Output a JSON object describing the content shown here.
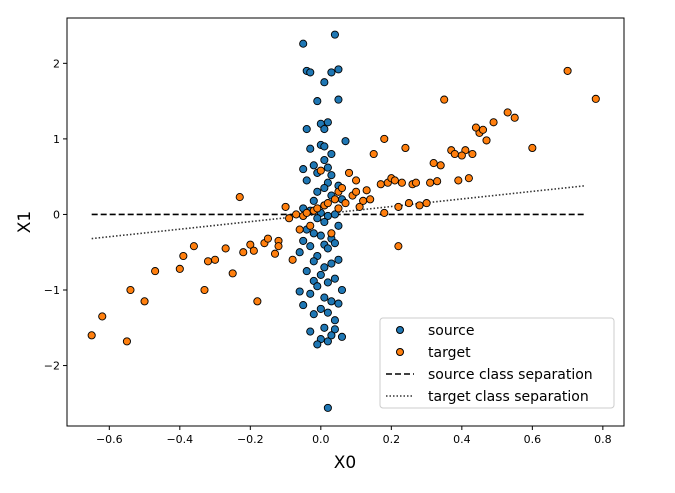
{
  "chart_data": {
    "type": "scatter",
    "xlabel": "X0",
    "ylabel": "X1",
    "xlim": [
      -0.72,
      0.86
    ],
    "ylim": [
      -2.8,
      2.6
    ],
    "xticks": [
      -0.6,
      -0.4,
      -0.2,
      0.0,
      0.2,
      0.4,
      0.6,
      0.8
    ],
    "yticks": [
      -2,
      -1,
      0,
      1,
      2
    ],
    "grid": false,
    "legend_position": "bottom-right",
    "series": [
      {
        "name": "source",
        "kind": "points",
        "color": "#1f77b4",
        "x": [
          0.04,
          -0.05,
          -0.04,
          -0.03,
          0.03,
          0.05,
          0.01,
          0.05,
          -0.01,
          0.0,
          0.02,
          -0.04,
          0.01,
          0.0,
          0.01,
          -0.03,
          0.07,
          0.03,
          -0.02,
          0.01,
          0.02,
          -0.05,
          -0.01,
          0.03,
          -0.04,
          0.02,
          0.05,
          0.01,
          -0.01,
          0.03,
          0.06,
          -0.02,
          0.01,
          -0.05,
          -0.03,
          0.0,
          0.04,
          0.02,
          -0.01,
          0.01,
          0.05,
          -0.04,
          -0.02,
          0.0,
          0.03,
          -0.05,
          0.04,
          0.01,
          -0.03,
          0.02,
          -0.06,
          -0.01,
          0.05,
          -0.02,
          0.03,
          0.01,
          -0.04,
          0.0,
          0.04,
          -0.02,
          0.02,
          -0.01,
          0.06,
          -0.06,
          -0.03,
          0.01,
          0.03,
          -0.05,
          0.0,
          0.05,
          0.02,
          -0.02,
          0.04,
          0.01,
          -0.03,
          0.06,
          0.0,
          0.02,
          0.03,
          -0.01,
          0.04,
          0.02
        ],
        "y": [
          2.38,
          2.26,
          1.9,
          1.88,
          1.88,
          1.92,
          1.75,
          1.52,
          1.5,
          1.2,
          1.22,
          1.13,
          1.13,
          0.92,
          0.9,
          0.87,
          0.97,
          0.8,
          0.65,
          0.72,
          0.62,
          0.6,
          0.55,
          0.52,
          0.45,
          0.42,
          0.38,
          0.35,
          0.3,
          0.25,
          0.2,
          0.18,
          0.12,
          0.08,
          0.05,
          0.02,
          0.0,
          -0.02,
          -0.05,
          -0.1,
          -0.15,
          -0.2,
          -0.25,
          -0.28,
          -0.32,
          -0.35,
          -0.38,
          -0.4,
          -0.42,
          -0.45,
          -0.5,
          -0.55,
          -0.6,
          -0.62,
          -0.65,
          -0.7,
          -0.75,
          -0.8,
          -0.85,
          -0.88,
          -0.9,
          -0.95,
          -1.0,
          -1.02,
          -1.05,
          -1.1,
          -1.15,
          -1.2,
          -1.25,
          -1.18,
          -1.3,
          -1.32,
          -1.4,
          -1.5,
          -1.55,
          -1.62,
          -1.65,
          -1.68,
          -1.6,
          -1.72,
          -1.52,
          -2.56
        ]
      },
      {
        "name": "target",
        "kind": "points",
        "color": "#ff7f0e",
        "x": [
          -0.65,
          -0.62,
          -0.55,
          -0.54,
          -0.5,
          -0.47,
          -0.4,
          -0.39,
          -0.36,
          -0.33,
          -0.32,
          -0.3,
          -0.27,
          -0.25,
          -0.23,
          -0.22,
          -0.2,
          -0.19,
          -0.18,
          -0.16,
          -0.15,
          -0.13,
          -0.12,
          -0.1,
          -0.09,
          -0.07,
          -0.06,
          -0.05,
          -0.04,
          -0.03,
          -0.02,
          -0.01,
          0.0,
          0.01,
          0.02,
          0.03,
          0.04,
          0.05,
          0.06,
          0.07,
          0.08,
          0.09,
          0.1,
          0.11,
          0.12,
          0.13,
          0.15,
          0.17,
          0.18,
          0.19,
          0.2,
          0.21,
          0.22,
          0.23,
          0.24,
          0.25,
          0.26,
          0.28,
          0.3,
          0.31,
          0.32,
          0.34,
          0.35,
          0.37,
          0.38,
          0.39,
          0.41,
          0.42,
          0.43,
          0.45,
          0.46,
          0.47,
          0.49,
          0.53,
          0.55,
          0.6,
          0.7,
          0.78,
          -0.08,
          -0.12,
          0.05,
          0.1,
          0.14,
          0.18,
          0.22,
          0.27,
          0.33,
          0.4,
          0.44
        ],
        "y": [
          -1.6,
          -1.35,
          -1.68,
          -1.0,
          -1.15,
          -0.75,
          -0.72,
          -0.55,
          -0.42,
          -1.0,
          -0.62,
          -0.6,
          -0.45,
          -0.78,
          0.23,
          -0.5,
          -0.4,
          -0.48,
          -1.15,
          -0.38,
          -0.32,
          -0.52,
          -0.35,
          0.1,
          -0.05,
          0.0,
          -0.2,
          -0.02,
          0.02,
          -0.15,
          0.05,
          0.08,
          0.58,
          0.12,
          0.15,
          -0.25,
          0.2,
          0.3,
          0.35,
          0.15,
          0.55,
          0.25,
          0.45,
          0.1,
          0.18,
          0.32,
          0.8,
          0.4,
          1.0,
          0.42,
          0.48,
          0.45,
          -0.42,
          0.42,
          0.88,
          0.15,
          0.4,
          0.12,
          0.15,
          0.42,
          0.68,
          0.65,
          1.52,
          0.85,
          0.8,
          0.45,
          0.85,
          0.48,
          0.8,
          1.08,
          1.12,
          0.98,
          1.22,
          1.35,
          1.28,
          0.88,
          1.9,
          1.53,
          -0.6,
          -0.42,
          0.08,
          0.3,
          0.2,
          0.02,
          0.1,
          0.42,
          0.44,
          0.78,
          1.15
        ]
      },
      {
        "name": "source class separation",
        "kind": "line",
        "style": "dashed",
        "color": "#000000",
        "x": [
          -0.65,
          0.75
        ],
        "y": [
          0.0,
          0.0
        ]
      },
      {
        "name": "target class separation",
        "kind": "line",
        "style": "dotted",
        "color": "#333333",
        "x": [
          -0.65,
          0.75
        ],
        "y": [
          -0.32,
          0.38
        ]
      }
    ]
  }
}
